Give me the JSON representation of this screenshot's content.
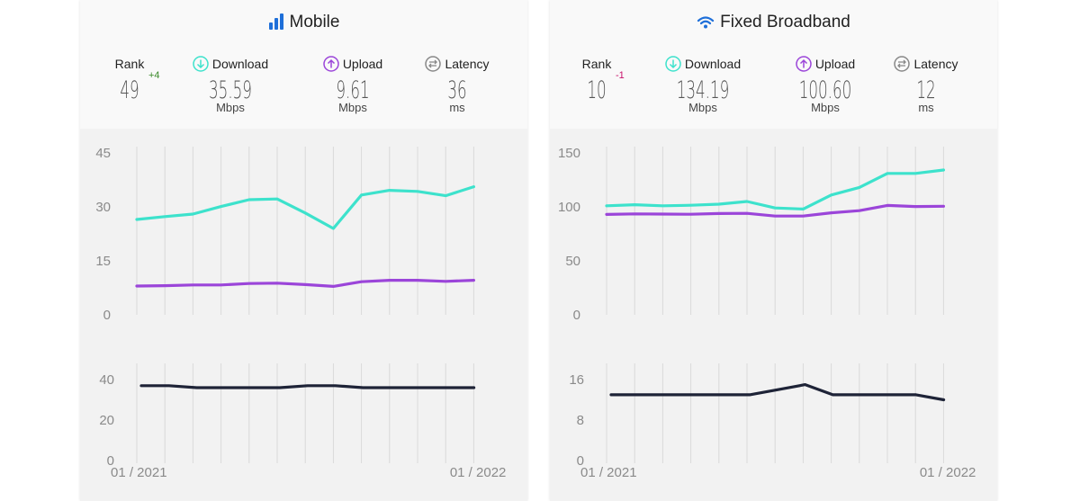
{
  "panels": [
    {
      "id": "mobile",
      "title": "Mobile",
      "icon": "signal-bars-icon",
      "rank": {
        "label": "Rank",
        "value": "49",
        "delta": "+4",
        "delta_color": "#3a8a2a"
      },
      "download": {
        "label": "Download",
        "value": "35.59",
        "unit": "Mbps",
        "icon": "download-arrow-icon",
        "color": "#3de2cc"
      },
      "upload": {
        "label": "Upload",
        "value": "9.61",
        "unit": "Mbps",
        "icon": "upload-arrow-icon",
        "color": "#9b45d9"
      },
      "latency": {
        "label": "Latency",
        "value": "36",
        "unit": "ms",
        "icon": "latency-icon",
        "color": "#1e2337"
      },
      "speed_axis": {
        "ticks": [
          "45",
          "30",
          "15",
          "0"
        ],
        "max": 45
      },
      "latency_axis": {
        "ticks": [
          "40",
          "20",
          "0"
        ],
        "max": 40
      },
      "x_labels": [
        "01 / 2021",
        "01 / 2022"
      ]
    },
    {
      "id": "fixed",
      "title": "Fixed Broadband",
      "icon": "wifi-icon",
      "rank": {
        "label": "Rank",
        "value": "10",
        "delta": "-1",
        "delta_color": "#c8106a"
      },
      "download": {
        "label": "Download",
        "value": "134.19",
        "unit": "Mbps",
        "icon": "download-arrow-icon",
        "color": "#3de2cc"
      },
      "upload": {
        "label": "Upload",
        "value": "100.60",
        "unit": "Mbps",
        "icon": "upload-arrow-icon",
        "color": "#9b45d9"
      },
      "latency": {
        "label": "Latency",
        "value": "12",
        "unit": "ms",
        "icon": "latency-icon",
        "color": "#1e2337"
      },
      "speed_axis": {
        "ticks": [
          "150",
          "100",
          "50",
          "0"
        ],
        "max": 150
      },
      "latency_axis": {
        "ticks": [
          "16",
          "8",
          "0"
        ],
        "max": 16
      },
      "x_labels": [
        "01 / 2021",
        "01 / 2022"
      ]
    }
  ],
  "chart_data": [
    {
      "type": "line",
      "title": "Mobile",
      "x": [
        "01 / 2021",
        "",
        "",
        "",
        "",
        "",
        "",
        "",
        "",
        "",
        "",
        "",
        "01 / 2022"
      ],
      "ylim": [
        0,
        45
      ],
      "series": [
        {
          "name": "Download",
          "values": [
            26.5,
            27.3,
            28.0,
            30.1,
            32.0,
            32.2,
            28.3,
            24.0,
            33.3,
            34.6,
            34.3,
            33.1,
            35.59
          ]
        },
        {
          "name": "Upload",
          "values": [
            8.0,
            8.1,
            8.3,
            8.3,
            8.7,
            8.8,
            8.4,
            7.9,
            9.2,
            9.6,
            9.6,
            9.3,
            9.61
          ]
        }
      ]
    },
    {
      "type": "line",
      "title": "Mobile",
      "x": [
        "01 / 2021",
        "",
        "",
        "",
        "",
        "",
        "",
        "",
        "",
        "",
        "",
        "",
        "01 / 2022"
      ],
      "ylim": [
        0,
        40
      ],
      "series": [
        {
          "name": "Latency",
          "values": [
            37,
            37,
            36,
            36,
            36,
            36,
            37,
            37,
            36,
            36,
            36,
            36,
            36
          ]
        }
      ]
    },
    {
      "type": "line",
      "title": "Fixed Broadband",
      "x": [
        "01 / 2021",
        "",
        "",
        "",
        "",
        "",
        "",
        "",
        "",
        "",
        "",
        "",
        "01 / 2022"
      ],
      "ylim": [
        0,
        150
      ],
      "series": [
        {
          "name": "Download",
          "values": [
            101,
            102,
            101,
            101.5,
            102.5,
            105,
            99,
            98,
            111,
            118,
            131,
            131,
            134.19
          ]
        },
        {
          "name": "Upload",
          "values": [
            93,
            93.5,
            93.3,
            93.2,
            93.8,
            94,
            91.5,
            91.5,
            94.5,
            96.5,
            101.3,
            100.3,
            100.6
          ]
        }
      ]
    },
    {
      "type": "line",
      "title": "Fixed Broadband",
      "x": [
        "01 / 2021",
        "",
        "",
        "",
        "",
        "",
        "",
        "",
        "",
        "",
        "",
        "",
        "01 / 2022"
      ],
      "ylim": [
        0,
        16
      ],
      "series": [
        {
          "name": "Latency",
          "values": [
            13,
            13,
            13,
            13,
            13,
            13,
            14,
            15,
            13,
            13,
            13,
            13,
            12
          ]
        }
      ]
    }
  ]
}
